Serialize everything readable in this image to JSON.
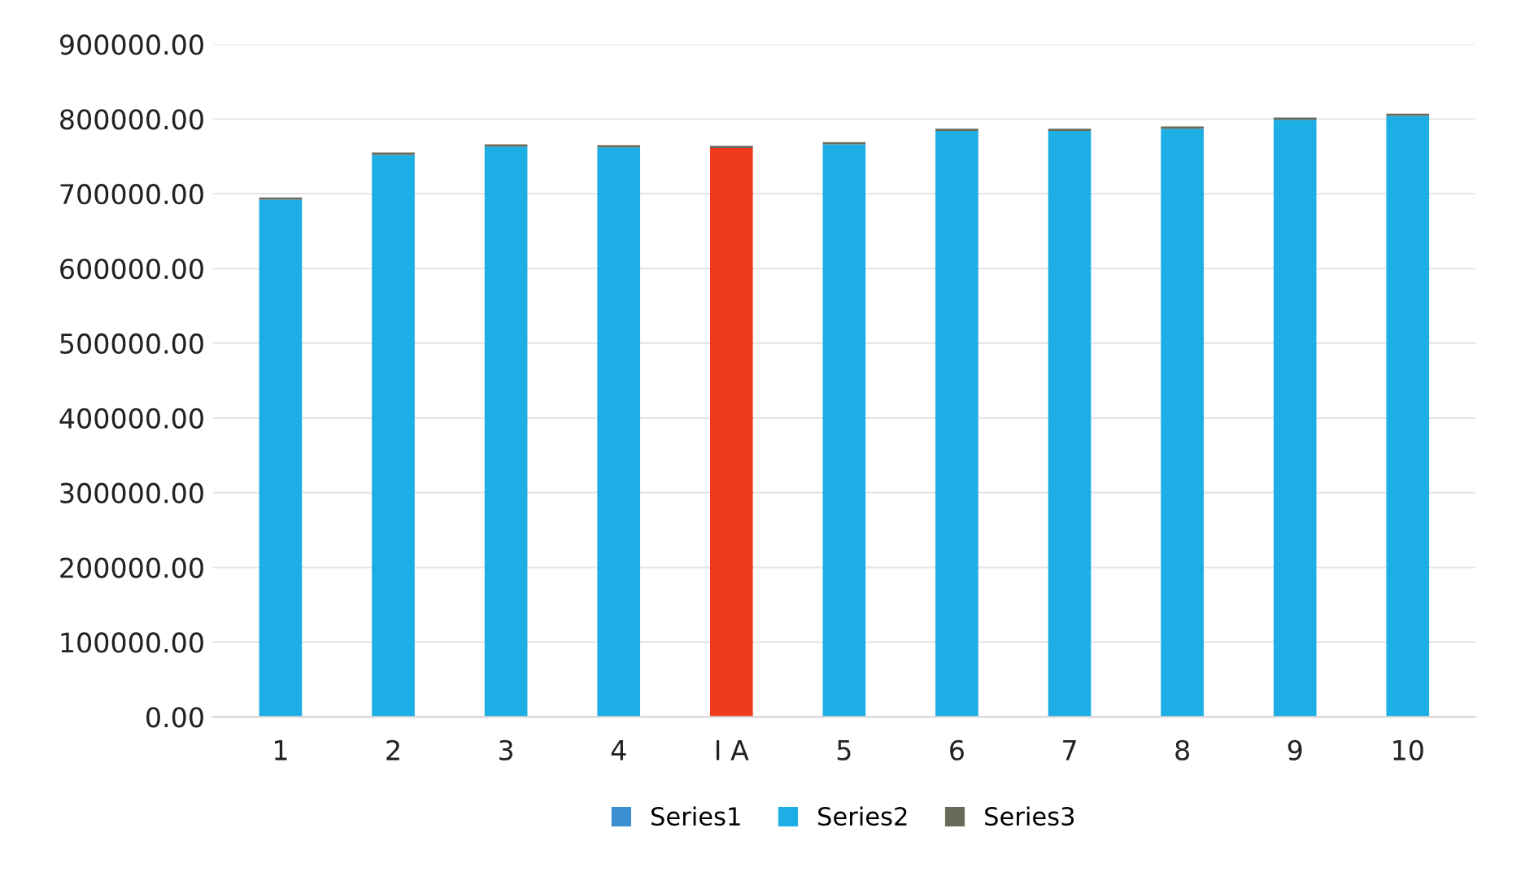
{
  "chart_data": {
    "type": "bar",
    "stacked": true,
    "categories": [
      "1",
      "2",
      "3",
      "4",
      "I A",
      "5",
      "6",
      "7",
      "8",
      "9",
      "10"
    ],
    "series": [
      {
        "name": "Series1",
        "color": "#3a8fd0",
        "values": [
          null,
          null,
          null,
          null,
          null,
          null,
          null,
          null,
          null,
          null,
          null
        ]
      },
      {
        "name": "Series2",
        "color": "#1eaee6",
        "colors": [
          "#1eaee6",
          "#1eaee6",
          "#1eaee6",
          "#1eaee6",
          "#f03a1e",
          "#1eaee6",
          "#1eaee6",
          "#1eaee6",
          "#1eaee6",
          "#1eaee6",
          "#1eaee6"
        ],
        "values": [
          692000,
          752000,
          763000,
          762000,
          761000,
          766000,
          784000,
          784000,
          787000,
          799000,
          804000
        ]
      },
      {
        "name": "Series3",
        "color": "#6a6a5a",
        "values": [
          3000,
          3000,
          3000,
          3000,
          3000,
          3000,
          3000,
          3000,
          3000,
          3000,
          3000
        ]
      }
    ],
    "ylim": [
      0,
      900000
    ],
    "yticks": [
      {
        "value": 0,
        "label": "0.00"
      },
      {
        "value": 100000,
        "label": "100000.00"
      },
      {
        "value": 200000,
        "label": "200000.00"
      },
      {
        "value": 300000,
        "label": "300000.00"
      },
      {
        "value": 400000,
        "label": "400000.00"
      },
      {
        "value": 500000,
        "label": "500000.00"
      },
      {
        "value": 600000,
        "label": "600000.00"
      },
      {
        "value": 700000,
        "label": "700000.00"
      },
      {
        "value": 800000,
        "label": "800000.00"
      },
      {
        "value": 900000,
        "label": "900000.00"
      }
    ],
    "grid": "y",
    "legend": "bottom"
  }
}
